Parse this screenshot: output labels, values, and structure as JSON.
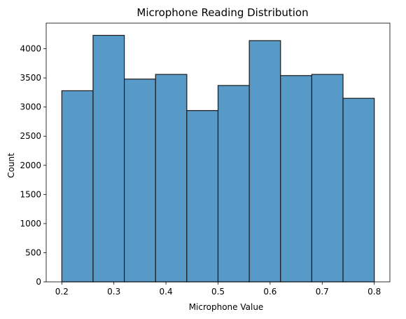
{
  "chart_data": {
    "type": "bar",
    "title": "Microphone Reading Distribution",
    "xlabel": "Microphone Value",
    "ylabel": "Count",
    "xlim": [
      0.17,
      0.83
    ],
    "ylim": [
      0,
      4440
    ],
    "x_ticks": [
      "0.2",
      "0.3",
      "0.4",
      "0.5",
      "0.6",
      "0.7",
      "0.8"
    ],
    "y_ticks": [
      "0",
      "500",
      "1000",
      "1500",
      "2000",
      "2500",
      "3000",
      "3500",
      "4000"
    ],
    "bins": [
      {
        "x0": 0.2,
        "x1": 0.26,
        "value": 3280
      },
      {
        "x0": 0.26,
        "x1": 0.32,
        "value": 4230
      },
      {
        "x0": 0.32,
        "x1": 0.38,
        "value": 3480
      },
      {
        "x0": 0.38,
        "x1": 0.44,
        "value": 3560
      },
      {
        "x0": 0.44,
        "x1": 0.5,
        "value": 2940
      },
      {
        "x0": 0.5,
        "x1": 0.56,
        "value": 3370
      },
      {
        "x0": 0.56,
        "x1": 0.62,
        "value": 4140
      },
      {
        "x0": 0.62,
        "x1": 0.68,
        "value": 3540
      },
      {
        "x0": 0.68,
        "x1": 0.74,
        "value": 3560
      },
      {
        "x0": 0.74,
        "x1": 0.8,
        "value": 3150
      }
    ],
    "grid": false,
    "bar_color": "#5799c7",
    "edge_color": "#1a1a1a"
  }
}
